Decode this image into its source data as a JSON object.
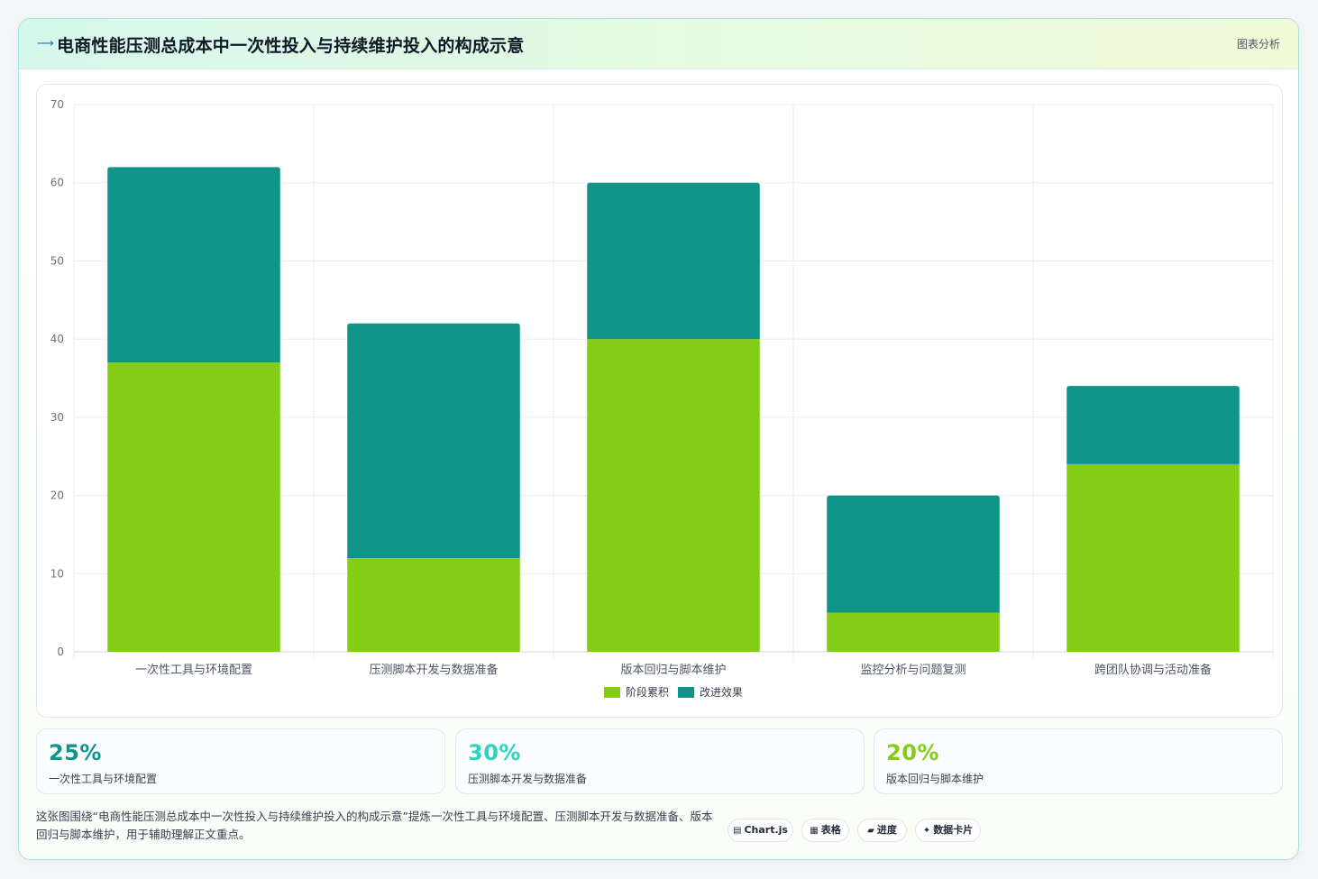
{
  "header": {
    "title": "电商性能压测总成本中一次性投入与持续维护投入的构成示意",
    "tag": "图表分析",
    "logo_icon": "bird-icon"
  },
  "chart_data": {
    "type": "bar",
    "stacked": true,
    "categories": [
      "一次性工具与环境配置",
      "压测脚本开发与数据准备",
      "版本回归与脚本维护",
      "监控分析与问题复测",
      "跨团队协调与活动准备"
    ],
    "series": [
      {
        "name": "阶段累积",
        "values": [
          37,
          12,
          40,
          5,
          24
        ],
        "color": "#84cc16"
      },
      {
        "name": "改进效果",
        "values": [
          25,
          30,
          20,
          15,
          10
        ],
        "color": "#0f9488"
      }
    ],
    "ylim": [
      0,
      70
    ],
    "yticks": [
      0,
      10,
      20,
      30,
      40,
      50,
      60,
      70
    ],
    "grid": true,
    "legend": "bottom-center"
  },
  "stats": [
    {
      "value": "25%",
      "label": "一次性工具与环境配置",
      "color": "#0f9488"
    },
    {
      "value": "30%",
      "label": "压测脚本开发与数据准备",
      "color": "#2dd4bf"
    },
    {
      "value": "20%",
      "label": "版本回归与脚本维护",
      "color": "#84cc16"
    }
  ],
  "description": "这张图围绕“电商性能压测总成本中一次性投入与持续维护投入的构成示意”提炼一次性工具与环境配置、压测脚本开发与数据准备、版本回归与脚本维护，用于辅助理解正文重点。",
  "chips": [
    {
      "icon": "▤",
      "label": "Chart.js"
    },
    {
      "icon": "▦",
      "label": "表格"
    },
    {
      "icon": "▰",
      "label": "进度"
    },
    {
      "icon": "✦",
      "label": "数据卡片"
    }
  ]
}
